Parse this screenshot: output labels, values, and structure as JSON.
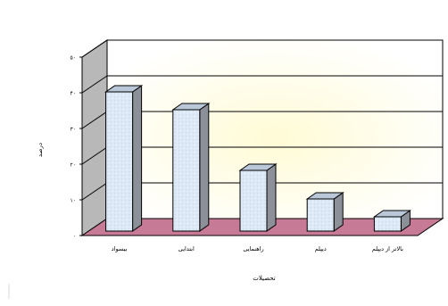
{
  "chart_data": {
    "type": "bar",
    "style": "3d-column",
    "categories": [
      "بیسواد",
      "ابتدایی",
      "راهنمایی",
      "دیپلم",
      "بالاتر از دیپلم"
    ],
    "values": [
      39,
      34,
      17,
      9,
      4
    ],
    "xlabel": "تحصیلات",
    "ylabel": "درصد",
    "ylim": [
      0,
      50
    ],
    "yticks": [
      {
        "value": 0,
        "label": "۰"
      },
      {
        "value": 10,
        "label": "۱۰"
      },
      {
        "value": 20,
        "label": "۲۰"
      },
      {
        "value": 30,
        "label": "۳۰"
      },
      {
        "value": 40,
        "label": "۴۰"
      },
      {
        "value": 50,
        "label": "۵۰"
      }
    ],
    "grid": true,
    "legend": "none",
    "colors": {
      "bar_front": "#dde9f7",
      "bar_side": "#8c9099",
      "bar_top": "#b9c7d8",
      "back_wall": "#fffbd6",
      "side_wall": "#b8b8b8",
      "floor": "#c77a95",
      "border": "#000000"
    }
  }
}
